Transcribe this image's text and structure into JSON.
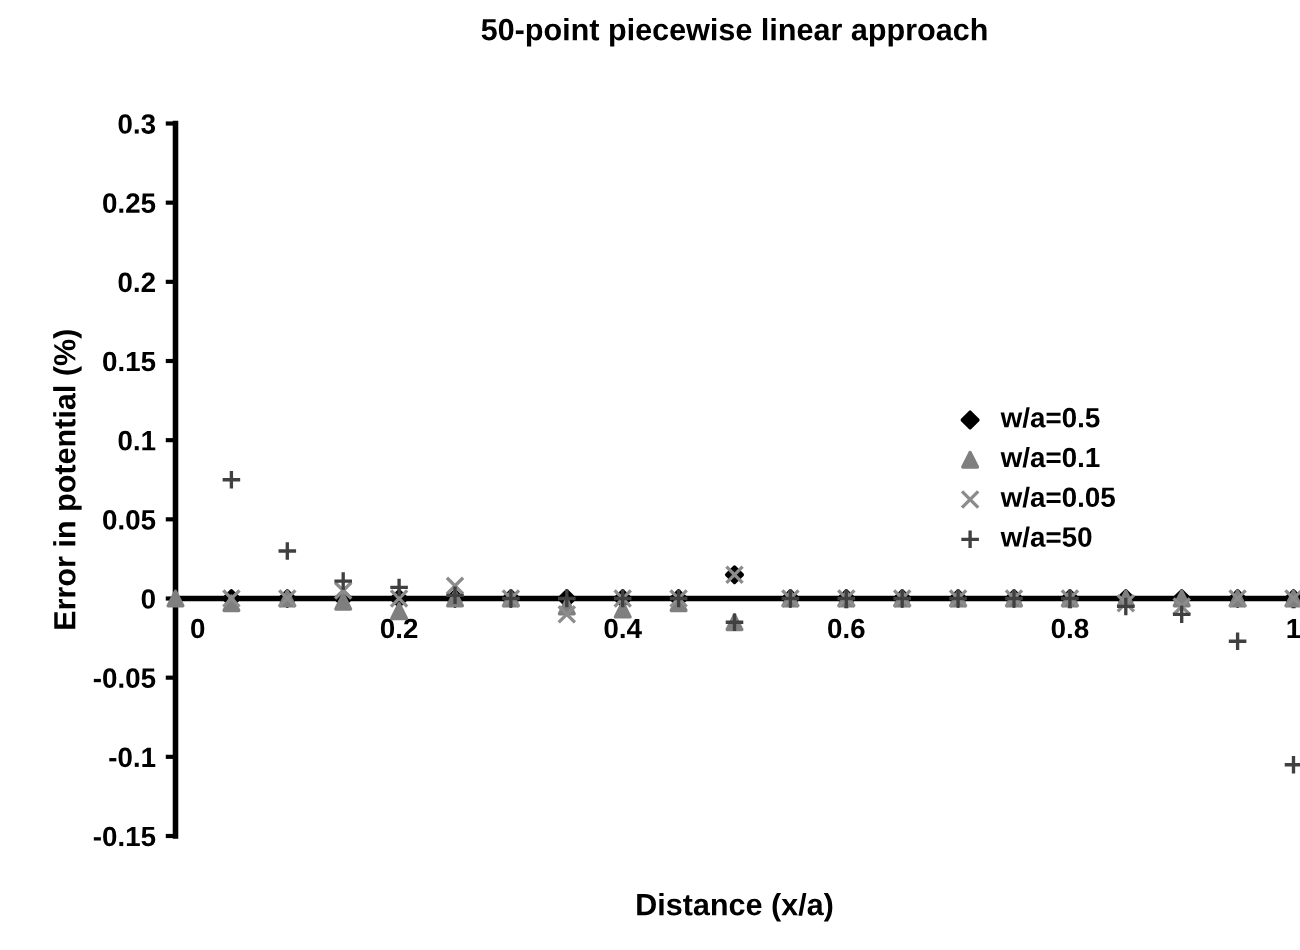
{
  "chart_data": {
    "type": "scatter",
    "title": "50-point piecewise linear approach",
    "xlabel": "Distance (x/a)",
    "ylabel": "Error in potential (%)",
    "x": [
      0,
      0.05,
      0.1,
      0.15,
      0.2,
      0.25,
      0.3,
      0.35,
      0.4,
      0.45,
      0.5,
      0.55,
      0.6,
      0.65,
      0.7,
      0.75,
      0.8,
      0.85,
      0.9,
      0.95,
      1
    ],
    "series": [
      {
        "name": "w/a=0.5",
        "color": "#000000",
        "marker": "diamond",
        "values": [
          null,
          0,
          0,
          0,
          0,
          0,
          0,
          0,
          0,
          0,
          0.015,
          0,
          0,
          0,
          0,
          0,
          0,
          0,
          0,
          0,
          0
        ]
      },
      {
        "name": "w/a=0.1",
        "color": "#7f7f7f",
        "marker": "triangle",
        "values": [
          0,
          -0.003,
          0,
          -0.002,
          -0.008,
          0,
          0,
          -0.005,
          -0.007,
          -0.003,
          -0.015,
          0,
          0,
          0,
          0,
          0,
          0,
          0,
          0,
          0,
          0
        ]
      },
      {
        "name": "w/a=0.05",
        "color": "#8c8c8c",
        "marker": "cross",
        "values": [
          null,
          0,
          0,
          0.005,
          0,
          0.008,
          0,
          -0.01,
          0,
          0,
          0.015,
          0,
          0,
          0,
          0,
          0,
          0,
          -0.003,
          -0.005,
          0,
          0
        ]
      },
      {
        "name": "w/a=50",
        "color": "#404040",
        "marker": "plus",
        "values": [
          null,
          0.075,
          0.03,
          0.011,
          0.007,
          0.002,
          0,
          0,
          0,
          0,
          -0.015,
          0,
          0,
          0,
          0,
          0,
          0,
          -0.005,
          -0.01,
          -0.027,
          -0.105
        ]
      }
    ],
    "xlim": [
      0,
      1
    ],
    "xticks": [
      0,
      0.2,
      0.4,
      0.6,
      0.8,
      1
    ],
    "ylim": [
      -0.15,
      0.3
    ],
    "yticks": [
      -0.15,
      -0.1,
      -0.05,
      0,
      0.05,
      0.1,
      0.15,
      0.2,
      0.25,
      0.3
    ],
    "grid": false,
    "legend": "right"
  }
}
